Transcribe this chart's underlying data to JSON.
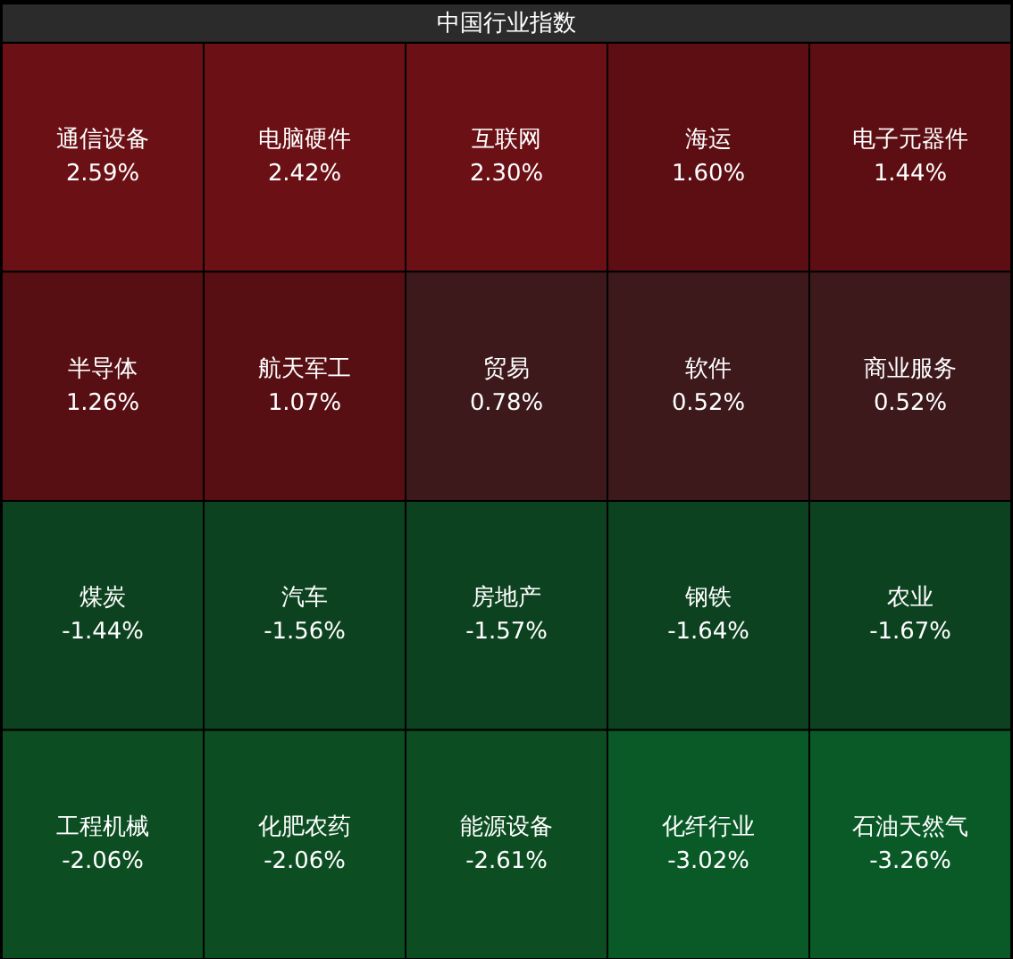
{
  "chart_data": {
    "type": "other",
    "title": "中国行业指数",
    "categories": [
      "通信设备",
      "电脑硬件",
      "互联网",
      "海运",
      "电子元器件",
      "半导体",
      "航天军工",
      "贸易",
      "软件",
      "商业服务",
      "煤炭",
      "汽车",
      "房地产",
      "钢铁",
      "农业",
      "工程机械",
      "化肥农药",
      "能源设备",
      "化纤行业",
      "石油天然气"
    ],
    "values": [
      2.59,
      2.42,
      2.3,
      1.6,
      1.44,
      1.26,
      1.07,
      0.78,
      0.52,
      0.52,
      -1.44,
      -1.56,
      -1.57,
      -1.64,
      -1.67,
      -2.06,
      -2.06,
      -2.61,
      -3.02,
      -3.26
    ],
    "value_labels": [
      "2.59%",
      "2.42%",
      "2.30%",
      "1.60%",
      "1.44%",
      "1.26%",
      "1.07%",
      "0.78%",
      "0.52%",
      "0.52%",
      "-1.44%",
      "-1.56%",
      "-1.57%",
      "-1.64%",
      "-1.67%",
      "-2.06%",
      "-2.06%",
      "-2.61%",
      "-3.02%",
      "-3.26%"
    ],
    "colors": [
      "#6b1015",
      "#6b1015",
      "#6b1015",
      "#5c0e13",
      "#5c0e13",
      "#570f13",
      "#570f13",
      "#3d191c",
      "#3d191c",
      "#3d191c",
      "#0d4220",
      "#0d4220",
      "#0d4220",
      "#0d4220",
      "#0d4220",
      "#0d4d22",
      "#0d4d22",
      "#0d4d22",
      "#0a5a28",
      "#0a5a28"
    ]
  }
}
